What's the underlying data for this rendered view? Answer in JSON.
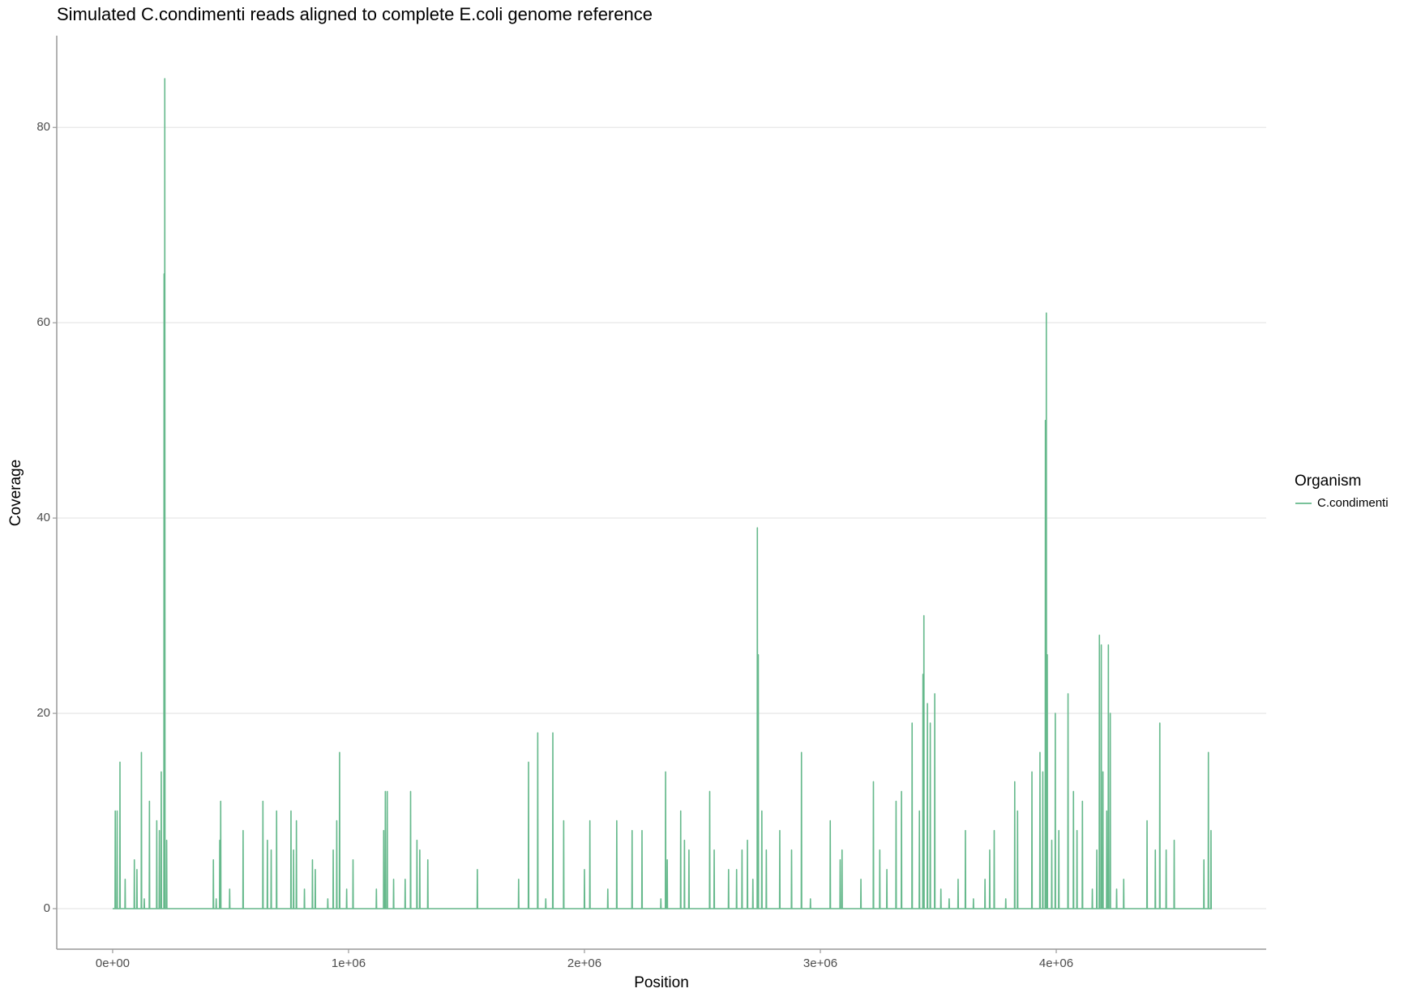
{
  "chart_data": {
    "type": "line",
    "title": "Simulated C.condimenti reads aligned to complete E.coli genome reference",
    "x_label": "Position",
    "y_label": "Coverage",
    "legend_title": "Organism",
    "legend_position": "right",
    "grid": true,
    "xlim": [
      -237000,
      4890000
    ],
    "ylim": [
      -4.15,
      89.4
    ],
    "xticks": [
      {
        "value": 0,
        "label": "0e+00"
      },
      {
        "value": 1000000,
        "label": "1e+06"
      },
      {
        "value": 2000000,
        "label": "2e+06"
      },
      {
        "value": 3000000,
        "label": "3e+06"
      },
      {
        "value": 4000000,
        "label": "4e+06"
      }
    ],
    "yticks": [
      0,
      20,
      40,
      60,
      80
    ],
    "x": [
      0,
      10000,
      11000,
      12000,
      18000,
      19000,
      20000,
      30000,
      31000,
      32000,
      52000,
      53000,
      54000,
      91000,
      92000,
      93000,
      102000,
      103000,
      104000,
      121000,
      122000,
      123000,
      133000,
      134000,
      135000,
      155000,
      156000,
      157000,
      186000,
      187000,
      188000,
      197000,
      198000,
      199000,
      205000,
      206000,
      207000,
      217000,
      218000,
      219000,
      220000,
      221000,
      222000,
      228000,
      229000,
      230000,
      426000,
      427000,
      428000,
      438000,
      439000,
      440000,
      453000,
      454000,
      455000,
      457000,
      458000,
      459000,
      495000,
      496000,
      497000,
      552000,
      553000,
      554000,
      636000,
      637000,
      638000,
      655000,
      656000,
      657000,
      671000,
      672000,
      673000,
      694000,
      695000,
      696000,
      755000,
      756000,
      757000,
      766000,
      767000,
      768000,
      778000,
      779000,
      780000,
      812000,
      813000,
      814000,
      846000,
      847000,
      848000,
      858000,
      859000,
      860000,
      911000,
      912000,
      913000,
      934000,
      935000,
      936000,
      949000,
      950000,
      951000,
      961000,
      962000,
      963000,
      991000,
      992000,
      993000,
      1018000,
      1019000,
      1020000,
      1117000,
      1118000,
      1119000,
      1148000,
      1149000,
      1150000,
      1155000,
      1156000,
      1157000,
      1163000,
      1164000,
      1165000,
      1190000,
      1191000,
      1192000,
      1239000,
      1240000,
      1241000,
      1262000,
      1263000,
      1264000,
      1289000,
      1290000,
      1291000,
      1301000,
      1302000,
      1303000,
      1335000,
      1336000,
      1337000,
      1545000,
      1546000,
      1547000,
      1720000,
      1721000,
      1722000,
      1762000,
      1763000,
      1764000,
      1801000,
      1802000,
      1803000,
      1835000,
      1836000,
      1837000,
      1865000,
      1866000,
      1867000,
      1911000,
      1912000,
      1913000,
      1999000,
      2000000,
      2001000,
      2022000,
      2023000,
      2024000,
      2098000,
      2099000,
      2100000,
      2136000,
      2137000,
      2138000,
      2201000,
      2202000,
      2203000,
      2243000,
      2244000,
      2245000,
      2323000,
      2324000,
      2325000,
      2343000,
      2344000,
      2345000,
      2350000,
      2351000,
      2352000,
      2407000,
      2408000,
      2409000,
      2423000,
      2424000,
      2425000,
      2442000,
      2443000,
      2444000,
      2530000,
      2531000,
      2532000,
      2549000,
      2550000,
      2551000,
      2610000,
      2611000,
      2612000,
      2644000,
      2645000,
      2646000,
      2667000,
      2668000,
      2669000,
      2690000,
      2691000,
      2692000,
      2713000,
      2714000,
      2715000,
      2732000,
      2733000,
      2734000,
      2736000,
      2737000,
      2738000,
      2751000,
      2752000,
      2753000,
      2770000,
      2771000,
      2772000,
      2827000,
      2828000,
      2829000,
      2877000,
      2878000,
      2879000,
      2919000,
      2920000,
      2921000,
      2957000,
      2958000,
      2959000,
      3041000,
      3042000,
      3043000,
      3083000,
      3084000,
      3085000,
      3091000,
      3092000,
      3093000,
      3171000,
      3172000,
      3173000,
      3224000,
      3225000,
      3226000,
      3251000,
      3252000,
      3253000,
      3281000,
      3282000,
      3283000,
      3320000,
      3321000,
      3322000,
      3343000,
      3344000,
      3345000,
      3388000,
      3389000,
      3390000,
      3419000,
      3420000,
      3421000,
      3434000,
      3435000,
      3436000,
      3438000,
      3439000,
      3440000,
      3453000,
      3454000,
      3455000,
      3465000,
      3466000,
      3467000,
      3484000,
      3485000,
      3486000,
      3510000,
      3511000,
      3512000,
      3545000,
      3546000,
      3547000,
      3583000,
      3584000,
      3585000,
      3614000,
      3615000,
      3616000,
      3648000,
      3649000,
      3650000,
      3697000,
      3698000,
      3699000,
      3717000,
      3718000,
      3719000,
      3736000,
      3737000,
      3738000,
      3785000,
      3786000,
      3787000,
      3823000,
      3824000,
      3825000,
      3835000,
      3836000,
      3837000,
      3896000,
      3897000,
      3898000,
      3930000,
      3931000,
      3932000,
      3942000,
      3943000,
      3944000,
      3953000,
      3954000,
      3955000,
      3957000,
      3958000,
      3959000,
      3961000,
      3962000,
      3963000,
      3980000,
      3981000,
      3982000,
      3995000,
      3996000,
      3997000,
      4010000,
      4011000,
      4012000,
      4049000,
      4050000,
      4051000,
      4072000,
      4073000,
      4074000,
      4087000,
      4088000,
      4089000,
      4110000,
      4111000,
      4112000,
      4152000,
      4153000,
      4154000,
      4171000,
      4172000,
      4173000,
      4182000,
      4183000,
      4184000,
      4190000,
      4191000,
      4192000,
      4197000,
      4198000,
      4199000,
      4213000,
      4214000,
      4215000,
      4220000,
      4221000,
      4222000,
      4228000,
      4229000,
      4230000,
      4255000,
      4256000,
      4257000,
      4285000,
      4286000,
      4287000,
      4384000,
      4385000,
      4386000,
      4419000,
      4420000,
      4421000,
      4438000,
      4439000,
      4440000,
      4465000,
      4466000,
      4467000,
      4499000,
      4500000,
      4501000,
      4625000,
      4626000,
      4627000,
      4644000,
      4645000,
      4646000,
      4655000,
      4656000,
      4657000,
      4660000
    ],
    "series": [
      {
        "name": "C.condimenti",
        "color": "#66b98c",
        "values": [
          0,
          0,
          10,
          0,
          0,
          10,
          0,
          0,
          15,
          0,
          0,
          3,
          0,
          0,
          5,
          0,
          0,
          4,
          0,
          0,
          16,
          0,
          0,
          1,
          0,
          0,
          11,
          0,
          0,
          9,
          0,
          0,
          8,
          0,
          0,
          14,
          0,
          0,
          65,
          0,
          0,
          85,
          0,
          0,
          7,
          0,
          0,
          5,
          0,
          0,
          1,
          0,
          0,
          7,
          0,
          0,
          11,
          0,
          0,
          2,
          0,
          0,
          8,
          0,
          0,
          11,
          0,
          0,
          7,
          0,
          0,
          6,
          0,
          0,
          10,
          0,
          0,
          10,
          0,
          0,
          6,
          0,
          0,
          9,
          0,
          0,
          2,
          0,
          0,
          5,
          0,
          0,
          4,
          0,
          0,
          1,
          0,
          0,
          6,
          0,
          0,
          9,
          0,
          0,
          16,
          0,
          0,
          2,
          0,
          0,
          5,
          0,
          0,
          2,
          0,
          0,
          8,
          0,
          0,
          12,
          0,
          0,
          12,
          0,
          0,
          3,
          0,
          0,
          3,
          0,
          0,
          12,
          0,
          0,
          7,
          0,
          0,
          6,
          0,
          0,
          5,
          0,
          0,
          4,
          0,
          0,
          3,
          0,
          0,
          15,
          0,
          0,
          18,
          0,
          0,
          1,
          0,
          0,
          18,
          0,
          0,
          9,
          0,
          0,
          4,
          0,
          0,
          9,
          0,
          0,
          2,
          0,
          0,
          9,
          0,
          0,
          8,
          0,
          0,
          8,
          0,
          0,
          1,
          0,
          0,
          14,
          0,
          0,
          5,
          0,
          0,
          10,
          0,
          0,
          7,
          0,
          0,
          6,
          0,
          0,
          12,
          0,
          0,
          6,
          0,
          0,
          4,
          0,
          0,
          4,
          0,
          0,
          6,
          0,
          0,
          7,
          0,
          0,
          3,
          0,
          0,
          39,
          0,
          0,
          26,
          0,
          0,
          10,
          0,
          0,
          6,
          0,
          0,
          8,
          0,
          0,
          6,
          0,
          0,
          16,
          0,
          0,
          1,
          0,
          0,
          9,
          0,
          0,
          5,
          0,
          0,
          6,
          0,
          0,
          3,
          0,
          0,
          13,
          0,
          0,
          6,
          0,
          0,
          4,
          0,
          0,
          11,
          0,
          0,
          12,
          0,
          0,
          19,
          0,
          0,
          10,
          0,
          0,
          24,
          0,
          0,
          30,
          0,
          0,
          21,
          0,
          0,
          19,
          0,
          0,
          22,
          0,
          0,
          2,
          0,
          0,
          1,
          0,
          0,
          3,
          0,
          0,
          8,
          0,
          0,
          1,
          0,
          0,
          3,
          0,
          0,
          6,
          0,
          0,
          8,
          0,
          0,
          1,
          0,
          0,
          13,
          0,
          0,
          10,
          0,
          0,
          14,
          0,
          0,
          16,
          0,
          0,
          14,
          0,
          0,
          50,
          0,
          0,
          61,
          0,
          0,
          26,
          0,
          0,
          7,
          0,
          0,
          20,
          0,
          0,
          8,
          0,
          0,
          22,
          0,
          0,
          12,
          0,
          0,
          8,
          0,
          0,
          11,
          0,
          0,
          2,
          0,
          0,
          6,
          0,
          0,
          28,
          0,
          0,
          27,
          0,
          0,
          14,
          0,
          0,
          10,
          0,
          0,
          27,
          0,
          0,
          20,
          0,
          0,
          2,
          0,
          0,
          3,
          0,
          0,
          9,
          0,
          0,
          6,
          0,
          0,
          19,
          0,
          0,
          6,
          0,
          0,
          7,
          0,
          0,
          5,
          0,
          0,
          16,
          0,
          0,
          8,
          0,
          0
        ]
      }
    ]
  }
}
